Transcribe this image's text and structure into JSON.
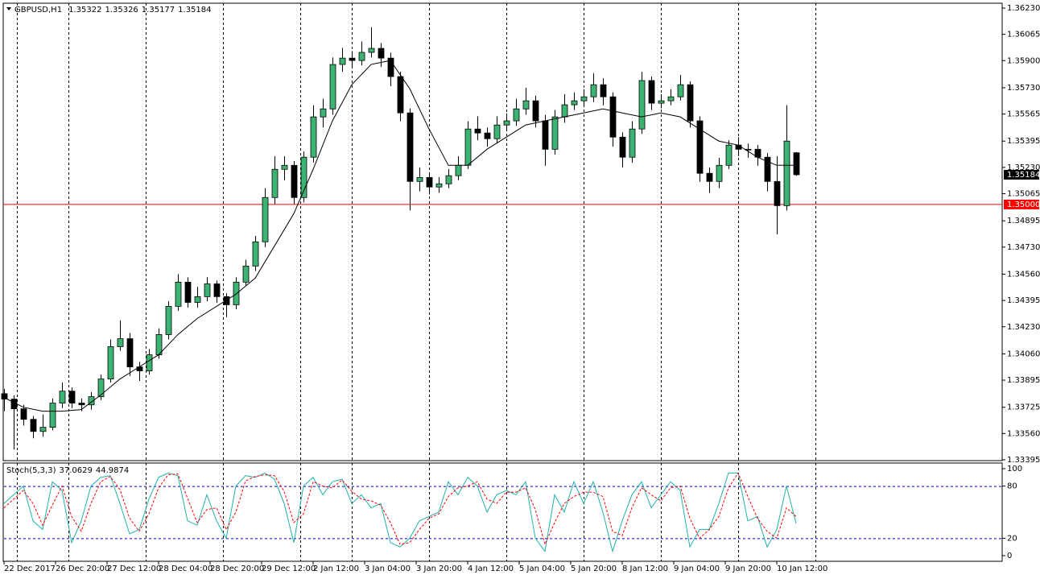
{
  "chart_data": [
    {
      "type": "candlestick",
      "title": "GBPUSD,H1",
      "x": [
        0,
        3,
        6,
        9,
        12,
        15,
        18,
        21,
        24,
        27,
        30,
        33,
        36,
        39,
        42,
        45,
        48,
        51,
        54,
        57,
        60,
        63,
        66,
        69,
        72,
        75,
        78,
        81,
        84,
        87,
        90,
        93,
        96,
        99,
        102,
        105,
        108,
        111,
        114,
        117,
        120,
        123,
        126,
        129,
        132,
        135,
        138,
        141,
        144,
        147,
        150,
        153,
        156,
        159,
        162,
        165,
        168,
        171,
        174,
        177,
        180,
        183,
        186,
        189,
        192,
        195,
        198,
        201,
        204,
        207,
        210,
        213,
        216,
        219,
        222,
        225,
        228,
        231,
        234,
        237,
        240,
        243,
        246
      ],
      "open": [
        1.3381,
        1.33776,
        1.33715,
        1.33649,
        1.33573,
        1.33599,
        1.33751,
        1.33826,
        1.33751,
        1.3374,
        1.33791,
        1.33902,
        1.34105,
        1.34155,
        1.33978,
        1.33953,
        1.34054,
        1.34181,
        1.34358,
        1.3451,
        1.34383,
        1.34419,
        1.34499,
        1.34419,
        1.34368,
        1.3451,
        1.34611,
        1.34763,
        1.35041,
        1.35218,
        1.35243,
        1.35041,
        1.35294,
        1.35547,
        1.35597,
        1.35876,
        1.35916,
        1.35901,
        1.35952,
        1.35977,
        1.35916,
        1.358,
        1.35572,
        1.35142,
        1.35167,
        1.35107,
        1.35127,
        1.35178,
        1.35243,
        1.35471,
        1.35446,
        1.3541,
        1.35496,
        1.35522,
        1.35597,
        1.35648,
        1.35522,
        1.35344,
        1.35547,
        1.35623,
        1.35648,
        1.35673,
        1.35749,
        1.35673,
        1.3542,
        1.35294,
        1.35471,
        1.35775,
        1.35633,
        1.35648,
        1.35673,
        1.35749,
        1.35522,
        1.35193,
        1.35142,
        1.35243,
        1.3537,
        1.35344,
        1.35344,
        1.35294,
        1.35142,
        1.3499,
        1.35322
      ],
      "high": [
        1.3384,
        1.338,
        1.3374,
        1.3367,
        1.3368,
        1.3378,
        1.3388,
        1.3385,
        1.3378,
        1.3382,
        1.3393,
        1.3415,
        1.3427,
        1.3419,
        1.3401,
        1.3409,
        1.3422,
        1.3439,
        1.3456,
        1.3454,
        1.3448,
        1.3454,
        1.3452,
        1.3444,
        1.3454,
        1.3465,
        1.348,
        1.351,
        1.353,
        1.353,
        1.3527,
        1.3533,
        1.3562,
        1.3566,
        1.3592,
        1.3598,
        1.3596,
        1.3602,
        1.3611,
        1.3601,
        1.3595,
        1.3583,
        1.356,
        1.3523,
        1.352,
        1.3517,
        1.3522,
        1.353,
        1.3552,
        1.3555,
        1.3548,
        1.3555,
        1.3557,
        1.3566,
        1.3573,
        1.3568,
        1.3556,
        1.3559,
        1.3569,
        1.357,
        1.3572,
        1.3582,
        1.3579,
        1.357,
        1.3545,
        1.3552,
        1.3583,
        1.358,
        1.3569,
        1.3572,
        1.3581,
        1.3577,
        1.3555,
        1.3523,
        1.3529,
        1.354,
        1.3542,
        1.3538,
        1.3537,
        1.3532,
        1.353,
        1.3562,
        1.35326
      ],
      "low": [
        1.337,
        1.3346,
        1.3361,
        1.3353,
        1.3354,
        1.3358,
        1.3372,
        1.3372,
        1.337,
        1.3371,
        1.3377,
        1.3388,
        1.3408,
        1.3392,
        1.3389,
        1.3393,
        1.3403,
        1.3415,
        1.3433,
        1.3435,
        1.3435,
        1.3439,
        1.3438,
        1.3429,
        1.3434,
        1.3449,
        1.3458,
        1.3473,
        1.35,
        1.3515,
        1.35,
        1.3501,
        1.3526,
        1.3548,
        1.3556,
        1.3583,
        1.3586,
        1.3587,
        1.3592,
        1.3586,
        1.3574,
        1.3552,
        1.3496,
        1.3508,
        1.3506,
        1.3507,
        1.351,
        1.3515,
        1.3522,
        1.354,
        1.3536,
        1.3538,
        1.3546,
        1.3549,
        1.3556,
        1.3548,
        1.3524,
        1.3531,
        1.3551,
        1.3559,
        1.3561,
        1.3564,
        1.3562,
        1.3536,
        1.3523,
        1.3526,
        1.3544,
        1.3559,
        1.356,
        1.3562,
        1.3565,
        1.3548,
        1.3514,
        1.3507,
        1.351,
        1.3522,
        1.353,
        1.3529,
        1.3524,
        1.3508,
        1.3481,
        1.3496,
        1.35177
      ],
      "close": [
        1.33776,
        1.33715,
        1.33649,
        1.33573,
        1.33599,
        1.33751,
        1.33826,
        1.33751,
        1.3374,
        1.33791,
        1.33902,
        1.34105,
        1.34155,
        1.33978,
        1.33953,
        1.34054,
        1.34181,
        1.34358,
        1.3451,
        1.34383,
        1.34419,
        1.34499,
        1.34419,
        1.34368,
        1.3451,
        1.34611,
        1.34763,
        1.35041,
        1.35218,
        1.35243,
        1.35041,
        1.35294,
        1.35547,
        1.35597,
        1.35876,
        1.35916,
        1.35901,
        1.35952,
        1.35977,
        1.35916,
        1.358,
        1.35572,
        1.35142,
        1.35167,
        1.35107,
        1.35127,
        1.35178,
        1.35243,
        1.35471,
        1.35446,
        1.3541,
        1.35496,
        1.35522,
        1.35597,
        1.35648,
        1.35522,
        1.35344,
        1.35547,
        1.35623,
        1.35648,
        1.35673,
        1.35749,
        1.35673,
        1.3542,
        1.35294,
        1.35471,
        1.35775,
        1.35633,
        1.35648,
        1.35673,
        1.35749,
        1.35522,
        1.35193,
        1.35142,
        1.35243,
        1.3537,
        1.35344,
        1.35344,
        1.35294,
        1.35142,
        1.3499,
        1.35395,
        1.35184
      ],
      "up_color": "#3cb371",
      "down_color": "#000000",
      "overlay": {
        "color": "#000000",
        "x": [
          0,
          6,
          12,
          18,
          24,
          30,
          36,
          42,
          48,
          54,
          60,
          66,
          72,
          78,
          84,
          90,
          96,
          102,
          108,
          114,
          120,
          126,
          132,
          138,
          144,
          150,
          156,
          162,
          168,
          174,
          180,
          186,
          192,
          198,
          204,
          210,
          216,
          222,
          228,
          234,
          240,
          246
        ],
        "values": [
          1.33786,
          1.33725,
          1.337,
          1.337,
          1.3371,
          1.33801,
          1.33902,
          1.33978,
          1.34054,
          1.34181,
          1.34282,
          1.34358,
          1.34434,
          1.34535,
          1.34737,
          1.3494,
          1.35218,
          1.35522,
          1.35749,
          1.35876,
          1.35901,
          1.35724,
          1.35471,
          1.35243,
          1.35243,
          1.35344,
          1.3542,
          1.35496,
          1.35522,
          1.35547,
          1.35572,
          1.35597,
          1.35572,
          1.35547,
          1.35572,
          1.35547,
          1.35471,
          1.35395,
          1.3537,
          1.35294,
          1.35243,
          1.35243
        ]
      },
      "hline": {
        "value": 1.35,
        "label": "1.35000",
        "color": "#ff0000"
      },
      "separators": [
        4,
        20,
        44,
        68,
        92,
        108,
        132,
        156,
        180,
        204,
        228,
        252
      ],
      "xlim": [
        0,
        310
      ],
      "ylim": [
        1.33395,
        1.3623
      ],
      "yticks": [
        {
          "value": 1.3623,
          "label": "1.36230"
        },
        1.36065,
        {
          "value": 1.359,
          "label": "1.35900"
        },
        {
          "value": 1.3573,
          "label": "1.35730"
        },
        1.35565,
        1.35395,
        {
          "value": 1.3523,
          "label": "1.35230"
        },
        1.35065,
        1.34895,
        {
          "value": 1.3473,
          "label": "1.34730"
        },
        {
          "value": 1.3456,
          "label": "1.34560"
        },
        1.34395,
        {
          "value": 1.3423,
          "label": "1.34230"
        },
        {
          "value": 1.3406,
          "label": "1.34060"
        },
        1.33895,
        1.33725,
        {
          "value": 1.3356,
          "label": "1.33560"
        },
        1.33395
      ]
    },
    {
      "type": "line",
      "title": "Stoch(5,3,3)",
      "x": [
        0,
        3,
        6,
        9,
        12,
        15,
        18,
        21,
        24,
        27,
        30,
        33,
        36,
        39,
        42,
        45,
        48,
        51,
        54,
        57,
        60,
        63,
        66,
        69,
        72,
        75,
        78,
        81,
        84,
        87,
        90,
        93,
        96,
        99,
        102,
        105,
        108,
        111,
        114,
        117,
        120,
        123,
        126,
        129,
        132,
        135,
        138,
        141,
        144,
        147,
        150,
        153,
        156,
        159,
        162,
        165,
        168,
        171,
        174,
        177,
        180,
        183,
        186,
        189,
        192,
        195,
        198,
        201,
        204,
        207,
        210,
        213,
        216,
        219,
        222,
        225,
        228,
        231,
        234,
        237,
        240,
        243,
        246
      ],
      "series": [
        {
          "color": "#20b2aa",
          "values": [
            60,
            70,
            80,
            40,
            30,
            85,
            75,
            15,
            40,
            80,
            90,
            92,
            60,
            25,
            30,
            65,
            90,
            95,
            92,
            40,
            35,
            70,
            40,
            20,
            80,
            92,
            90,
            95,
            88,
            60,
            15,
            80,
            90,
            70,
            85,
            88,
            60,
            70,
            55,
            60,
            15,
            10,
            20,
            40,
            45,
            50,
            85,
            70,
            90,
            80,
            50,
            70,
            75,
            70,
            85,
            20,
            5,
            70,
            50,
            85,
            60,
            85,
            50,
            5,
            40,
            70,
            85,
            55,
            70,
            85,
            75,
            10,
            30,
            30,
            60,
            95,
            95,
            40,
            45,
            10,
            30,
            80,
            37.0629
          ]
        },
        {
          "color": "#ff0000",
          "dashed": true,
          "values": [
            55,
            65,
            75,
            60,
            35,
            58,
            80,
            45,
            28,
            60,
            85,
            91,
            76,
            43,
            28,
            48,
            78,
            93,
            94,
            66,
            38,
            53,
            55,
            30,
            50,
            86,
            91,
            93,
            92,
            74,
            38,
            48,
            85,
            80,
            78,
            87,
            74,
            65,
            63,
            58,
            38,
            13,
            15,
            30,
            43,
            48,
            68,
            78,
            80,
            85,
            65,
            60,
            73,
            73,
            78,
            53,
            13,
            38,
            60,
            68,
            73,
            73,
            68,
            28,
            23,
            55,
            78,
            70,
            63,
            78,
            80,
            43,
            20,
            30,
            45,
            78,
            95,
            68,
            43,
            28,
            20,
            55,
            44.9874
          ]
        }
      ],
      "levels": [
        20,
        80
      ],
      "level_color": "#0000cd",
      "separators": [
        4,
        20,
        44,
        68,
        92,
        108,
        132,
        156,
        180,
        204,
        228,
        252
      ],
      "xlim": [
        0,
        310
      ],
      "ylim": [
        0,
        100
      ],
      "yticks": [
        0,
        20,
        80,
        100
      ],
      "xticks": [
        {
          "value": 0,
          "label": "22 Dec 2017"
        },
        {
          "value": 16,
          "label": "26 Dec 20:00"
        },
        {
          "value": 32,
          "label": "27 Dec 12:00"
        },
        {
          "value": 48,
          "label": "28 Dec 04:00"
        },
        {
          "value": 64,
          "label": "28 Dec 20:00"
        },
        {
          "value": 80,
          "label": "29 Dec 12:00"
        },
        {
          "value": 96,
          "label": "2 Jan 12:00"
        },
        {
          "value": 112,
          "label": "3 Jan 04:00"
        },
        {
          "value": 128,
          "label": "3 Jan 20:00"
        },
        {
          "value": 144,
          "label": "4 Jan 12:00"
        },
        {
          "value": 160,
          "label": "5 Jan 04:00"
        },
        {
          "value": 176,
          "label": "5 Jan 20:00"
        },
        {
          "value": 192,
          "label": "8 Jan 12:00"
        },
        {
          "value": 208,
          "label": "9 Jan 04:00"
        },
        {
          "value": 224,
          "label": "9 Jan 20:00"
        },
        {
          "value": 240,
          "label": "10 Jan 12:00"
        }
      ]
    }
  ]
}
